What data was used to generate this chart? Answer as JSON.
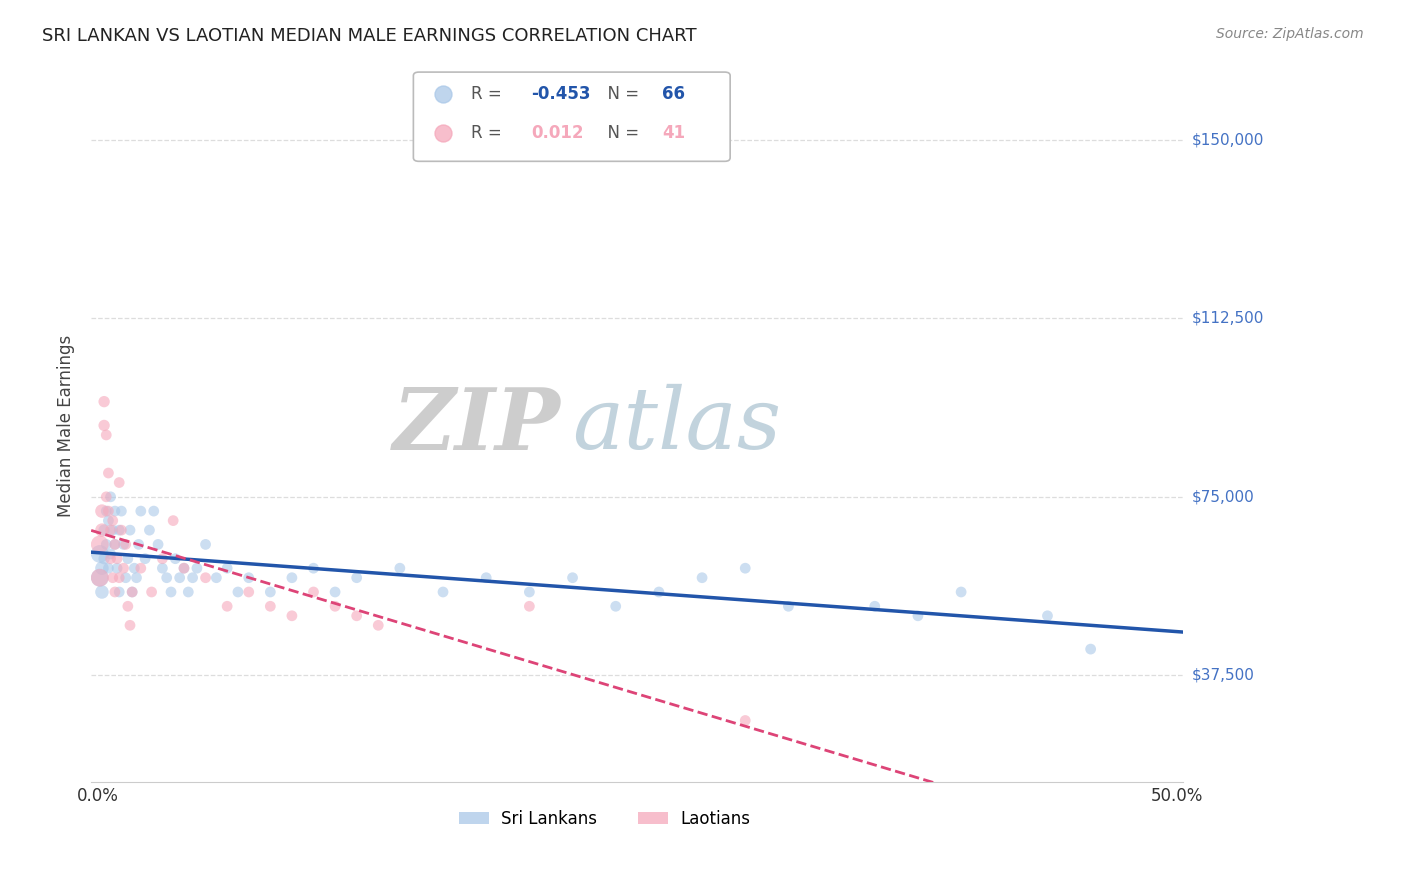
{
  "title": "SRI LANKAN VS LAOTIAN MEDIAN MALE EARNINGS CORRELATION CHART",
  "source": "Source: ZipAtlas.com",
  "ylabel": "Median Male Earnings",
  "ytick_labels": [
    "$37,500",
    "$75,000",
    "$112,500",
    "$150,000"
  ],
  "ytick_values": [
    37500,
    75000,
    112500,
    150000
  ],
  "ymin": 15000,
  "ymax": 165000,
  "xmin": -0.003,
  "xmax": 0.503,
  "legend_entries": [
    {
      "label": "Sri Lankans",
      "R": "-0.453",
      "N": "66",
      "color": "#aac8e8",
      "line_color": "#2255aa"
    },
    {
      "label": "Laotians",
      "R": "0.012",
      "N": "41",
      "color": "#f5a8bb",
      "line_color": "#dd4477"
    }
  ],
  "sri_lanka_scatter": [
    [
      0.001,
      63000
    ],
    [
      0.001,
      58000
    ],
    [
      0.002,
      60000
    ],
    [
      0.002,
      55000
    ],
    [
      0.003,
      68000
    ],
    [
      0.003,
      62000
    ],
    [
      0.004,
      72000
    ],
    [
      0.004,
      65000
    ],
    [
      0.005,
      70000
    ],
    [
      0.005,
      60000
    ],
    [
      0.006,
      75000
    ],
    [
      0.006,
      63000
    ],
    [
      0.007,
      68000
    ],
    [
      0.008,
      65000
    ],
    [
      0.008,
      72000
    ],
    [
      0.009,
      60000
    ],
    [
      0.01,
      68000
    ],
    [
      0.01,
      55000
    ],
    [
      0.011,
      72000
    ],
    [
      0.012,
      65000
    ],
    [
      0.013,
      58000
    ],
    [
      0.014,
      62000
    ],
    [
      0.015,
      68000
    ],
    [
      0.016,
      55000
    ],
    [
      0.017,
      60000
    ],
    [
      0.018,
      58000
    ],
    [
      0.019,
      65000
    ],
    [
      0.02,
      72000
    ],
    [
      0.022,
      62000
    ],
    [
      0.024,
      68000
    ],
    [
      0.026,
      72000
    ],
    [
      0.028,
      65000
    ],
    [
      0.03,
      60000
    ],
    [
      0.032,
      58000
    ],
    [
      0.034,
      55000
    ],
    [
      0.036,
      62000
    ],
    [
      0.038,
      58000
    ],
    [
      0.04,
      60000
    ],
    [
      0.042,
      55000
    ],
    [
      0.044,
      58000
    ],
    [
      0.046,
      60000
    ],
    [
      0.05,
      65000
    ],
    [
      0.055,
      58000
    ],
    [
      0.06,
      60000
    ],
    [
      0.065,
      55000
    ],
    [
      0.07,
      58000
    ],
    [
      0.08,
      55000
    ],
    [
      0.09,
      58000
    ],
    [
      0.1,
      60000
    ],
    [
      0.11,
      55000
    ],
    [
      0.12,
      58000
    ],
    [
      0.14,
      60000
    ],
    [
      0.16,
      55000
    ],
    [
      0.18,
      58000
    ],
    [
      0.2,
      55000
    ],
    [
      0.22,
      58000
    ],
    [
      0.24,
      52000
    ],
    [
      0.26,
      55000
    ],
    [
      0.28,
      58000
    ],
    [
      0.3,
      60000
    ],
    [
      0.32,
      52000
    ],
    [
      0.36,
      52000
    ],
    [
      0.38,
      50000
    ],
    [
      0.4,
      55000
    ],
    [
      0.44,
      50000
    ],
    [
      0.46,
      43000
    ]
  ],
  "laotian_scatter": [
    [
      0.001,
      58000
    ],
    [
      0.001,
      65000
    ],
    [
      0.002,
      72000
    ],
    [
      0.002,
      68000
    ],
    [
      0.003,
      90000
    ],
    [
      0.003,
      95000
    ],
    [
      0.004,
      88000
    ],
    [
      0.004,
      75000
    ],
    [
      0.005,
      80000
    ],
    [
      0.005,
      72000
    ],
    [
      0.006,
      68000
    ],
    [
      0.006,
      62000
    ],
    [
      0.007,
      70000
    ],
    [
      0.007,
      58000
    ],
    [
      0.008,
      65000
    ],
    [
      0.008,
      55000
    ],
    [
      0.009,
      62000
    ],
    [
      0.01,
      58000
    ],
    [
      0.01,
      78000
    ],
    [
      0.011,
      68000
    ],
    [
      0.012,
      60000
    ],
    [
      0.013,
      65000
    ],
    [
      0.014,
      52000
    ],
    [
      0.015,
      48000
    ],
    [
      0.016,
      55000
    ],
    [
      0.02,
      60000
    ],
    [
      0.025,
      55000
    ],
    [
      0.03,
      62000
    ],
    [
      0.035,
      70000
    ],
    [
      0.04,
      60000
    ],
    [
      0.05,
      58000
    ],
    [
      0.06,
      52000
    ],
    [
      0.07,
      55000
    ],
    [
      0.08,
      52000
    ],
    [
      0.09,
      50000
    ],
    [
      0.1,
      55000
    ],
    [
      0.11,
      52000
    ],
    [
      0.12,
      50000
    ],
    [
      0.13,
      48000
    ],
    [
      0.2,
      52000
    ],
    [
      0.3,
      28000
    ]
  ],
  "background_color": "#ffffff",
  "watermark_zip_color": "#c8d8e8",
  "watermark_atlas_color": "#b8ccd8",
  "grid_color": "#dddddd"
}
